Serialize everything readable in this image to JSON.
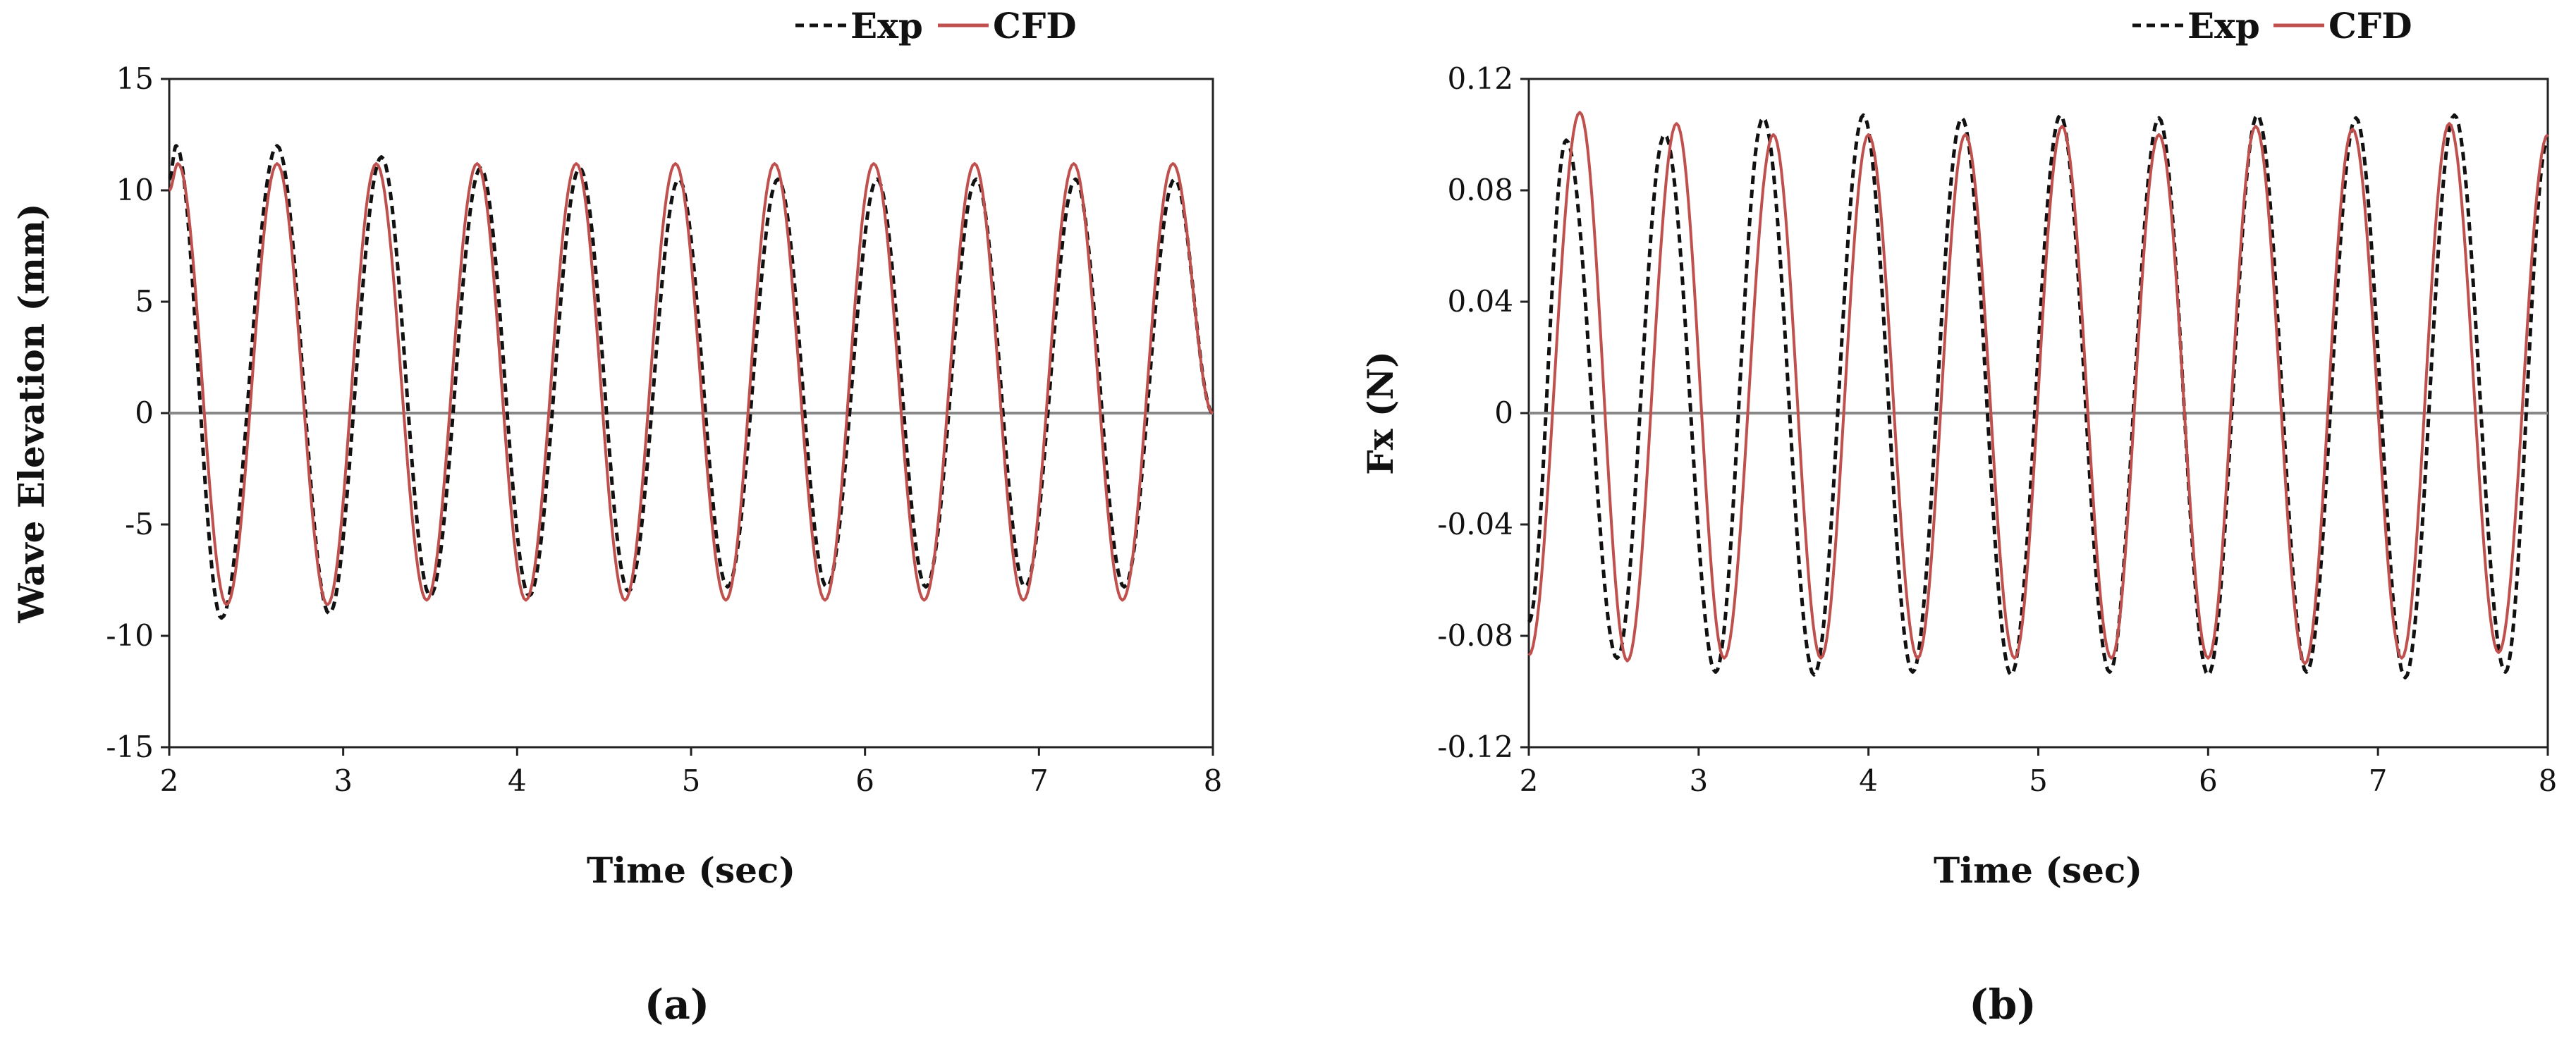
{
  "chart_data": [
    {
      "type": "line",
      "panel_label": "(a)",
      "xlabel": "Time (sec)",
      "ylabel": "Wave Elevation (mm)",
      "xlim": [
        2,
        8
      ],
      "ylim": [
        -15,
        15
      ],
      "xticks": [
        "2",
        "3",
        "4",
        "5",
        "6",
        "7",
        "8"
      ],
      "yticks": [
        "15",
        "10",
        "5",
        "0",
        "-5",
        "-10",
        "-15"
      ],
      "legend_position": "top-right",
      "grid": false,
      "zero_line": true,
      "legend": [
        {
          "label": "Exp",
          "color": "#111111",
          "dash": "dashed"
        },
        {
          "label": "CFD",
          "color": "#c0504d",
          "dash": "solid"
        }
      ],
      "series": [
        {
          "name": "Exp",
          "color": "#111111",
          "dash": "dashed",
          "x": [
            2.0,
            2.04,
            2.3,
            2.62,
            2.92,
            3.22,
            3.5,
            3.79,
            4.07,
            4.36,
            4.64,
            4.93,
            5.21,
            5.5,
            5.78,
            6.07,
            6.35,
            6.64,
            6.92,
            7.21,
            7.49,
            7.78,
            8.0
          ],
          "y": [
            10.5,
            12.0,
            -9.2,
            12.0,
            -9.0,
            11.5,
            -8.2,
            11.0,
            -8.2,
            11.0,
            -8.0,
            10.5,
            -7.8,
            10.5,
            -7.8,
            10.5,
            -7.8,
            10.5,
            -7.8,
            10.5,
            -7.8,
            10.5,
            0
          ]
        },
        {
          "name": "CFD",
          "color": "#c0504d",
          "dash": "solid",
          "x": [
            2.0,
            2.05,
            2.33,
            2.62,
            2.91,
            3.19,
            3.48,
            3.77,
            4.05,
            4.34,
            4.62,
            4.91,
            5.2,
            5.48,
            5.77,
            6.05,
            6.34,
            6.63,
            6.91,
            7.2,
            7.48,
            7.77,
            8.0
          ],
          "y": [
            10.0,
            11.2,
            -8.6,
            11.2,
            -8.6,
            11.2,
            -8.4,
            11.2,
            -8.4,
            11.2,
            -8.4,
            11.2,
            -8.4,
            11.2,
            -8.4,
            11.2,
            -8.4,
            11.2,
            -8.4,
            11.2,
            -8.4,
            11.2,
            0
          ]
        }
      ]
    },
    {
      "type": "line",
      "panel_label": "(b)",
      "xlabel": "Time (sec)",
      "ylabel": "Fx (N)",
      "xlim": [
        2,
        8
      ],
      "ylim": [
        -0.12,
        0.12
      ],
      "xticks": [
        "2",
        "3",
        "4",
        "5",
        "6",
        "7",
        "8"
      ],
      "yticks": [
        "0.12",
        "0.08",
        "0.04",
        "0",
        "-0.04",
        "-0.08",
        "-0.12"
      ],
      "legend_position": "top-right",
      "grid": false,
      "zero_line": true,
      "legend": [
        {
          "label": "Exp",
          "color": "#111111",
          "dash": "dashed"
        },
        {
          "label": "CFD",
          "color": "#c0504d",
          "dash": "solid"
        }
      ],
      "series": [
        {
          "name": "Exp",
          "color": "#111111",
          "dash": "dashed",
          "x": [
            2.0,
            2.22,
            2.52,
            2.8,
            3.1,
            3.38,
            3.68,
            3.97,
            4.26,
            4.55,
            4.84,
            5.13,
            5.42,
            5.71,
            6.0,
            6.29,
            6.58,
            6.87,
            7.16,
            7.45,
            7.75,
            8.0
          ],
          "y": [
            -0.075,
            0.098,
            -0.088,
            0.1,
            -0.093,
            0.106,
            -0.094,
            0.107,
            -0.093,
            0.106,
            -0.094,
            0.107,
            -0.093,
            0.106,
            -0.094,
            0.107,
            -0.093,
            0.106,
            -0.095,
            0.107,
            -0.093,
            0.098
          ]
        },
        {
          "name": "CFD",
          "color": "#c0504d",
          "dash": "solid",
          "x": [
            2.0,
            2.3,
            2.58,
            2.87,
            3.15,
            3.44,
            3.72,
            4.0,
            4.29,
            4.57,
            4.86,
            5.14,
            5.43,
            5.71,
            6.0,
            6.28,
            6.57,
            6.85,
            7.14,
            7.42,
            7.71,
            8.0
          ],
          "y": [
            -0.087,
            0.108,
            -0.089,
            0.104,
            -0.088,
            0.1,
            -0.088,
            0.1,
            -0.088,
            0.1,
            -0.088,
            0.103,
            -0.088,
            0.1,
            -0.088,
            0.103,
            -0.09,
            0.102,
            -0.088,
            0.104,
            -0.086,
            0.1
          ]
        }
      ]
    }
  ]
}
